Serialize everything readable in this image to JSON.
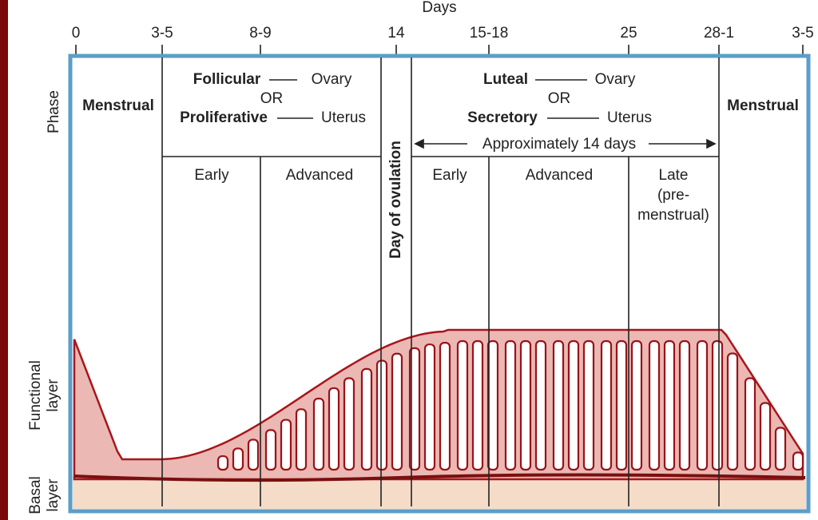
{
  "header": {
    "title": "Days"
  },
  "day_ticks": [
    "0",
    "3-5",
    "8-9",
    "14",
    "15-18",
    "25",
    "28-1",
    "3-5"
  ],
  "left_labels": {
    "phase": "Phase",
    "functional_layer": [
      "Functional",
      "layer"
    ],
    "basal_layer": [
      "Basal",
      "layer"
    ]
  },
  "phases": {
    "menstrual_start": "Menstrual",
    "follicular": {
      "line1": [
        "Follicular",
        "Ovary"
      ],
      "or": "OR",
      "line2": [
        "Proliferative",
        "Uterus"
      ]
    },
    "ovulation": "Day of ovulation",
    "luteal": {
      "line1": [
        "Luteal",
        "Ovary"
      ],
      "or": "OR",
      "line2": [
        "Secretory",
        "Uterus"
      ],
      "duration": "Approximately 14 days"
    },
    "menstrual_end": "Menstrual"
  },
  "subphases": {
    "follicular_early": "Early",
    "follicular_advanced": "Advanced",
    "luteal_early": "Early",
    "luteal_advanced": "Advanced",
    "luteal_late": [
      "Late",
      "(pre-",
      "menstrual)"
    ]
  }
}
